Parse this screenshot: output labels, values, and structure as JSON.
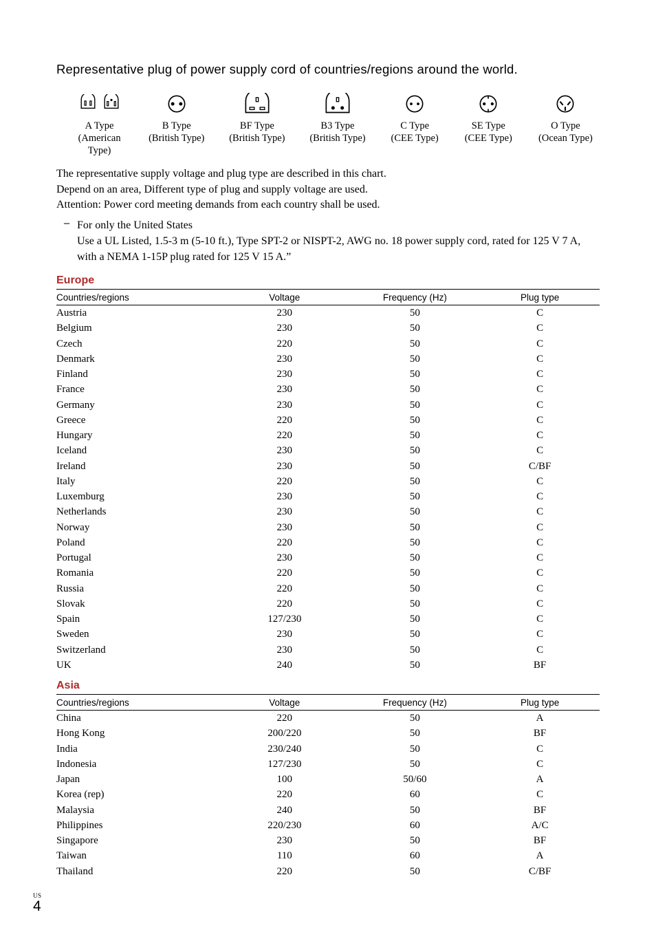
{
  "title": "Representative plug of power supply cord of countries/regions around the world.",
  "plugs": [
    {
      "name": "A Type",
      "sub": "(American Type)"
    },
    {
      "name": "B Type",
      "sub": "(British Type)"
    },
    {
      "name": "BF Type",
      "sub": "(British Type)"
    },
    {
      "name": "B3 Type",
      "sub": "(British Type)"
    },
    {
      "name": "C Type",
      "sub": "(CEE Type)"
    },
    {
      "name": "SE Type",
      "sub": "(CEE Type)"
    },
    {
      "name": "O Type",
      "sub": "(Ocean Type)"
    }
  ],
  "desc": {
    "l1": "The representative supply voltage and plug type are described in this chart.",
    "l2": "Depend on an area, Different type of plug and supply voltage are used.",
    "l3": "Attention: Power cord meeting demands from each country shall be used."
  },
  "bullet": {
    "dash": "–",
    "line1": "For only the United States",
    "line2": "Use a UL Listed, 1.5-3 m (5-10 ft.), Type SPT-2 or NISPT-2, AWG no. 18 power supply cord, rated for 125 V 7 A, with a NEMA 1-15P plug rated for 125 V 15 A.”"
  },
  "headers": {
    "c": "Countries/regions",
    "v": "Voltage",
    "f": "Frequency (Hz)",
    "p": "Plug type"
  },
  "sections": {
    "europe": {
      "heading": "Europe",
      "rows": [
        [
          "Austria",
          "230",
          "50",
          "C"
        ],
        [
          "Belgium",
          "230",
          "50",
          "C"
        ],
        [
          "Czech",
          "220",
          "50",
          "C"
        ],
        [
          "Denmark",
          "230",
          "50",
          "C"
        ],
        [
          "Finland",
          "230",
          "50",
          "C"
        ],
        [
          "France",
          "230",
          "50",
          "C"
        ],
        [
          "Germany",
          "230",
          "50",
          "C"
        ],
        [
          "Greece",
          "220",
          "50",
          "C"
        ],
        [
          "Hungary",
          "220",
          "50",
          "C"
        ],
        [
          "Iceland",
          "230",
          "50",
          "C"
        ],
        [
          "Ireland",
          "230",
          "50",
          "C/BF"
        ],
        [
          "Italy",
          "220",
          "50",
          "C"
        ],
        [
          "Luxemburg",
          "230",
          "50",
          "C"
        ],
        [
          "Netherlands",
          "230",
          "50",
          "C"
        ],
        [
          "Norway",
          "230",
          "50",
          "C"
        ],
        [
          "Poland",
          "220",
          "50",
          "C"
        ],
        [
          "Portugal",
          "230",
          "50",
          "C"
        ],
        [
          "Romania",
          "220",
          "50",
          "C"
        ],
        [
          "Russia",
          "220",
          "50",
          "C"
        ],
        [
          "Slovak",
          "220",
          "50",
          "C"
        ],
        [
          "Spain",
          "127/230",
          "50",
          "C"
        ],
        [
          "Sweden",
          "230",
          "50",
          "C"
        ],
        [
          "Switzerland",
          "230",
          "50",
          "C"
        ],
        [
          "UK",
          "240",
          "50",
          "BF"
        ]
      ]
    },
    "asia": {
      "heading": "Asia",
      "rows": [
        [
          "China",
          "220",
          "50",
          "A"
        ],
        [
          "Hong Kong",
          "200/220",
          "50",
          "BF"
        ],
        [
          "India",
          "230/240",
          "50",
          "C"
        ],
        [
          "Indonesia",
          "127/230",
          "50",
          "C"
        ],
        [
          "Japan",
          "100",
          "50/60",
          "A"
        ],
        [
          "Korea (rep)",
          "220",
          "60",
          "C"
        ],
        [
          "Malaysia",
          "240",
          "50",
          "BF"
        ],
        [
          "Philippines",
          "220/230",
          "60",
          "A/C"
        ],
        [
          "Singapore",
          "230",
          "50",
          "BF"
        ],
        [
          "Taiwan",
          "110",
          "60",
          "A"
        ],
        [
          "Thailand",
          "220",
          "50",
          "C/BF"
        ]
      ]
    }
  },
  "footer": {
    "region": "US",
    "page": "4"
  },
  "colors": {
    "heading": "#b02b2b",
    "rule": "#000000"
  }
}
